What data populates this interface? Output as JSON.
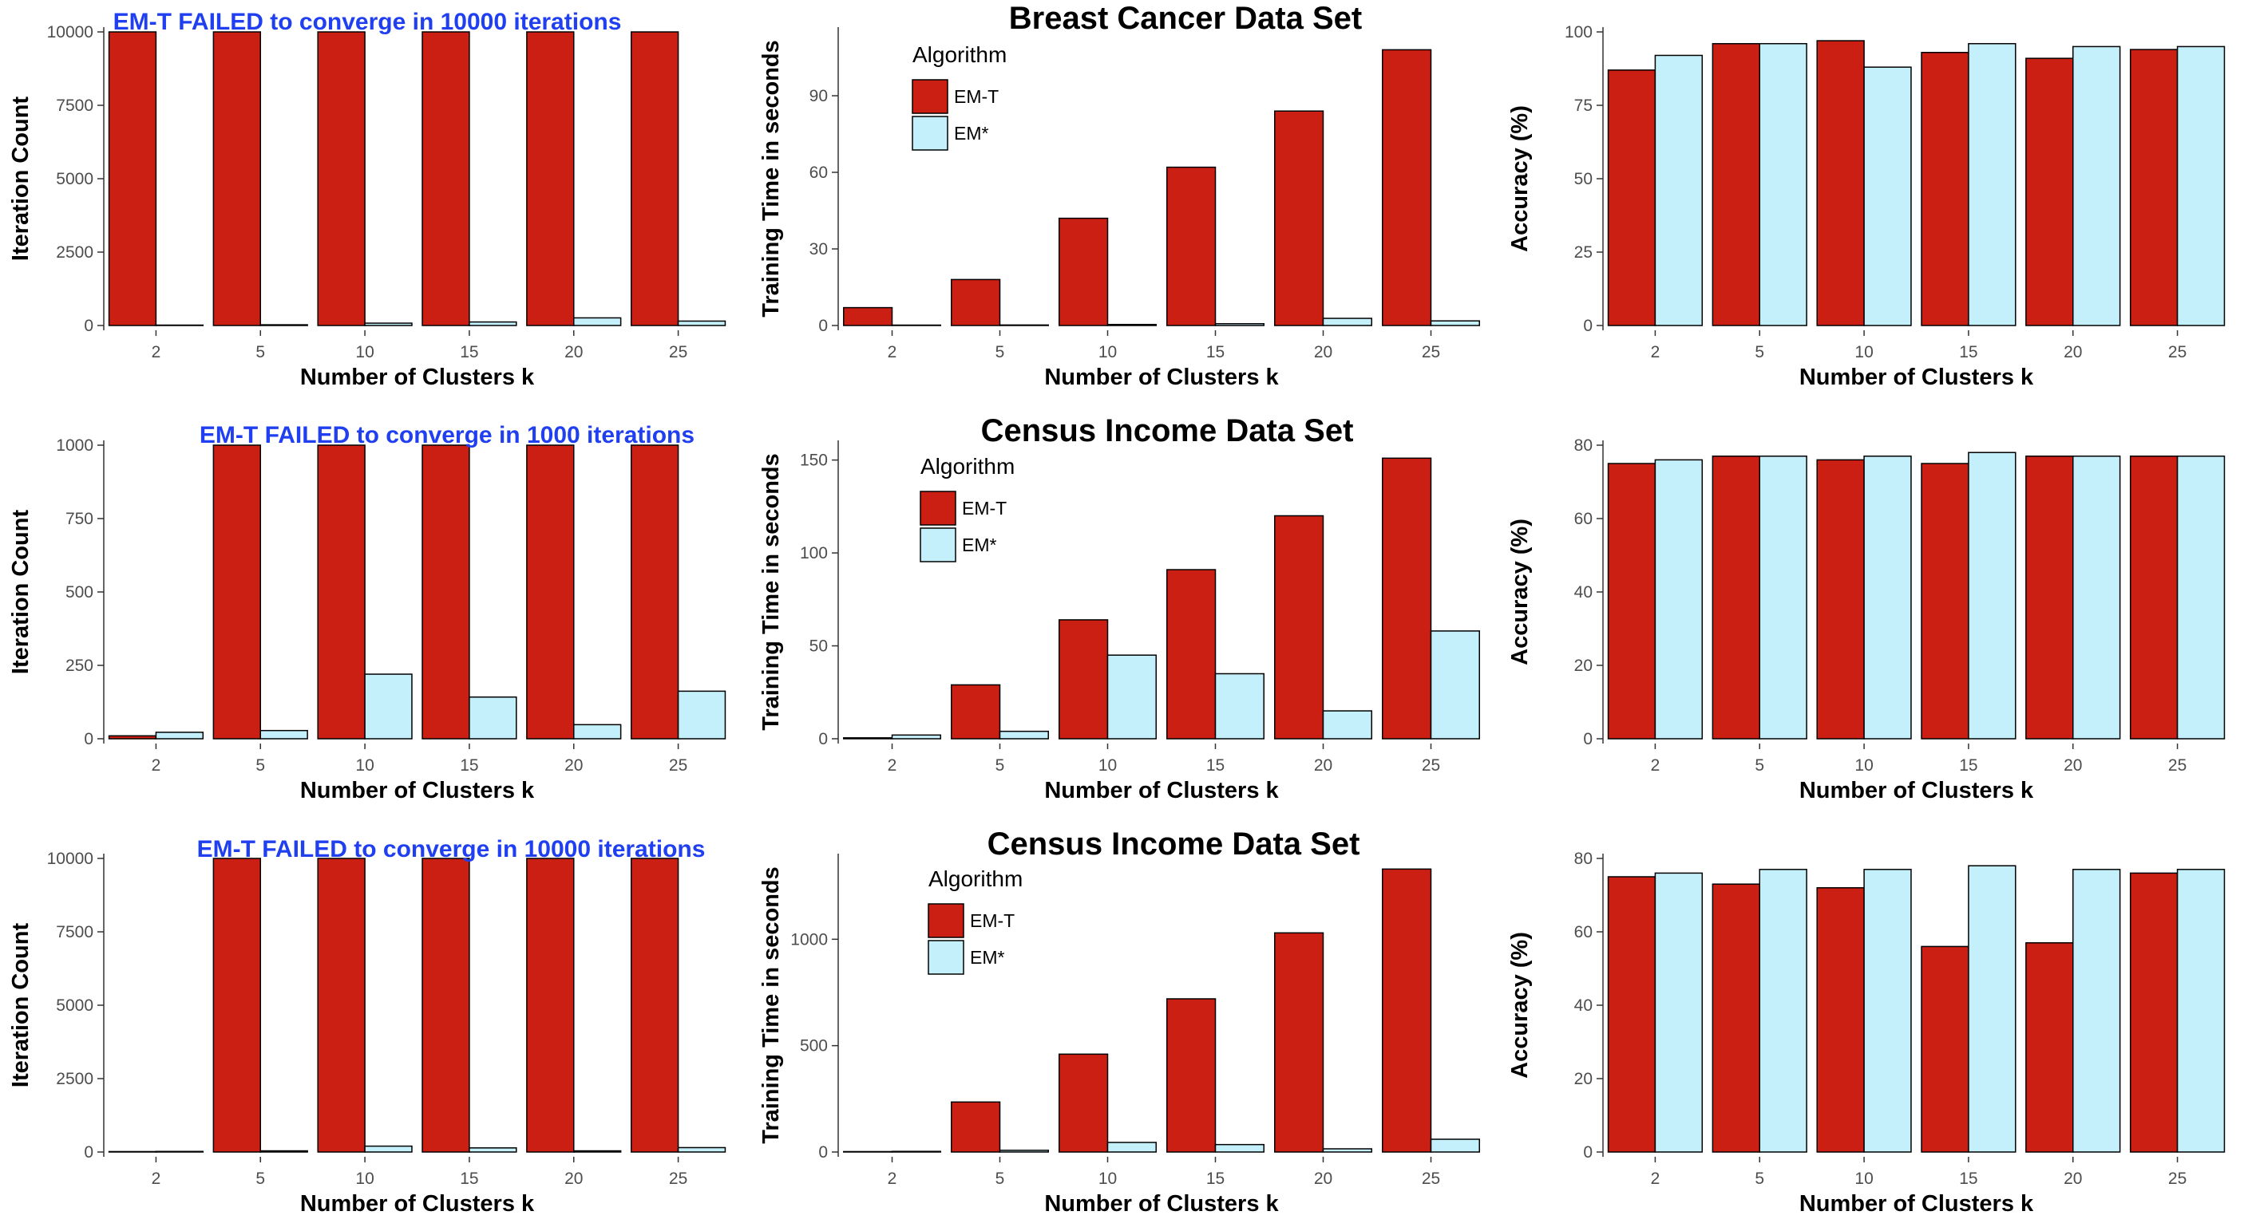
{
  "colors": {
    "em_t": "#cc1f14",
    "em_star": "#c4f0fc",
    "annotation": "#1f3ff0",
    "bar_border": "#000000"
  },
  "chart_data": [
    {
      "type": "bar",
      "title": "",
      "xlabel": "Number of Clusters k",
      "ylabel": "Iteration Count",
      "categories": [
        "2",
        "5",
        "10",
        "15",
        "20",
        "25"
      ],
      "series": [
        {
          "name": "EM-T",
          "values": [
            10000,
            10000,
            10000,
            10000,
            10000,
            10000
          ]
        },
        {
          "name": "EM*",
          "values": [
            5,
            25,
            80,
            120,
            260,
            150
          ]
        }
      ],
      "ylim": [
        0,
        10000
      ],
      "yticks": [
        0,
        2500,
        5000,
        7500,
        10000
      ],
      "annotation": "EM-T FAILED to converge in 10000 iterations"
    },
    {
      "type": "bar",
      "title": "Breast Cancer Data Set",
      "xlabel": "Number of Clusters k",
      "ylabel": "Training Time in seconds",
      "categories": [
        "2",
        "5",
        "10",
        "15",
        "20",
        "25"
      ],
      "series": [
        {
          "name": "EM-T",
          "values": [
            7,
            18,
            42,
            62,
            84,
            108
          ]
        },
        {
          "name": "EM*",
          "values": [
            0.1,
            0.2,
            0.4,
            0.7,
            2.8,
            1.8
          ]
        }
      ],
      "ylim": [
        0,
        115
      ],
      "yticks": [
        0,
        30,
        60,
        90
      ],
      "legend": {
        "title": "Algorithm",
        "entries": [
          "EM-T",
          "EM*"
        ]
      }
    },
    {
      "type": "bar",
      "title": "",
      "xlabel": "Number of Clusters k",
      "ylabel": "Accuracy (%)",
      "categories": [
        "2",
        "5",
        "10",
        "15",
        "20",
        "25"
      ],
      "series": [
        {
          "name": "EM-T",
          "values": [
            87,
            96,
            97,
            93,
            91,
            94
          ]
        },
        {
          "name": "EM*",
          "values": [
            92,
            96,
            88,
            96,
            95,
            95
          ]
        }
      ],
      "ylim": [
        0,
        100
      ],
      "yticks": [
        0,
        25,
        50,
        75,
        100
      ]
    },
    {
      "type": "bar",
      "title": "",
      "xlabel": "Number of Clusters k",
      "ylabel": "Iteration Count",
      "categories": [
        "2",
        "5",
        "10",
        "15",
        "20",
        "25"
      ],
      "series": [
        {
          "name": "EM-T",
          "values": [
            10,
            1000,
            1000,
            1000,
            1000,
            1000
          ]
        },
        {
          "name": "EM*",
          "values": [
            22,
            28,
            220,
            142,
            48,
            162
          ]
        }
      ],
      "ylim": [
        0,
        1000
      ],
      "yticks": [
        0,
        250,
        500,
        750,
        1000
      ],
      "annotation": "EM-T FAILED to converge in 1000 iterations"
    },
    {
      "type": "bar",
      "title": "Census Income Data Set",
      "xlabel": "Number of Clusters k",
      "ylabel": "Training Time in seconds",
      "categories": [
        "2",
        "5",
        "10",
        "15",
        "20",
        "25"
      ],
      "series": [
        {
          "name": "EM-T",
          "values": [
            0.5,
            29,
            64,
            91,
            120,
            151
          ]
        },
        {
          "name": "EM*",
          "values": [
            2,
            4,
            45,
            35,
            15,
            58
          ]
        }
      ],
      "ylim": [
        0,
        158
      ],
      "yticks": [
        0,
        50,
        100,
        150
      ],
      "legend": {
        "title": "Algorithm",
        "entries": [
          "EM-T",
          "EM*"
        ]
      }
    },
    {
      "type": "bar",
      "title": "",
      "xlabel": "Number of Clusters k",
      "ylabel": "Accuracy (%)",
      "categories": [
        "2",
        "5",
        "10",
        "15",
        "20",
        "25"
      ],
      "series": [
        {
          "name": "EM-T",
          "values": [
            75,
            77,
            76,
            75,
            77,
            77
          ]
        },
        {
          "name": "EM*",
          "values": [
            76,
            77,
            77,
            78,
            77,
            77
          ]
        }
      ],
      "ylim": [
        0,
        80
      ],
      "yticks": [
        0,
        20,
        40,
        60,
        80
      ]
    },
    {
      "type": "bar",
      "title": "",
      "xlabel": "Number of Clusters k",
      "ylabel": "Iteration Count",
      "categories": [
        "2",
        "5",
        "10",
        "15",
        "20",
        "25"
      ],
      "series": [
        {
          "name": "EM-T",
          "values": [
            15,
            10000,
            10000,
            10000,
            10000,
            10000
          ]
        },
        {
          "name": "EM*",
          "values": [
            20,
            40,
            200,
            140,
            40,
            150
          ]
        }
      ],
      "ylim": [
        0,
        10000
      ],
      "yticks": [
        0,
        2500,
        5000,
        7500,
        10000
      ],
      "annotation": "EM-T FAILED to converge in 10000 iterations"
    },
    {
      "type": "bar",
      "title": "Census Income Data Set",
      "xlabel": "Number of Clusters k",
      "ylabel": "Training Time in seconds",
      "categories": [
        "2",
        "5",
        "10",
        "15",
        "20",
        "25"
      ],
      "series": [
        {
          "name": "EM-T",
          "values": [
            2,
            235,
            460,
            720,
            1030,
            1330
          ]
        },
        {
          "name": "EM*",
          "values": [
            3,
            8,
            45,
            35,
            15,
            60
          ]
        }
      ],
      "ylim": [
        0,
        1380
      ],
      "yticks": [
        0,
        500,
        1000
      ],
      "legend": {
        "title": "Algorithm",
        "entries": [
          "EM-T",
          "EM*"
        ]
      }
    },
    {
      "type": "bar",
      "title": "",
      "xlabel": "Number of Clusters k",
      "ylabel": "Accuracy (%)",
      "categories": [
        "2",
        "5",
        "10",
        "15",
        "20",
        "25"
      ],
      "series": [
        {
          "name": "EM-T",
          "values": [
            75,
            73,
            72,
            56,
            57,
            76
          ]
        },
        {
          "name": "EM*",
          "values": [
            76,
            77,
            77,
            78,
            77,
            77
          ]
        }
      ],
      "ylim": [
        0,
        80
      ],
      "yticks": [
        0,
        20,
        40,
        60,
        80
      ]
    }
  ]
}
